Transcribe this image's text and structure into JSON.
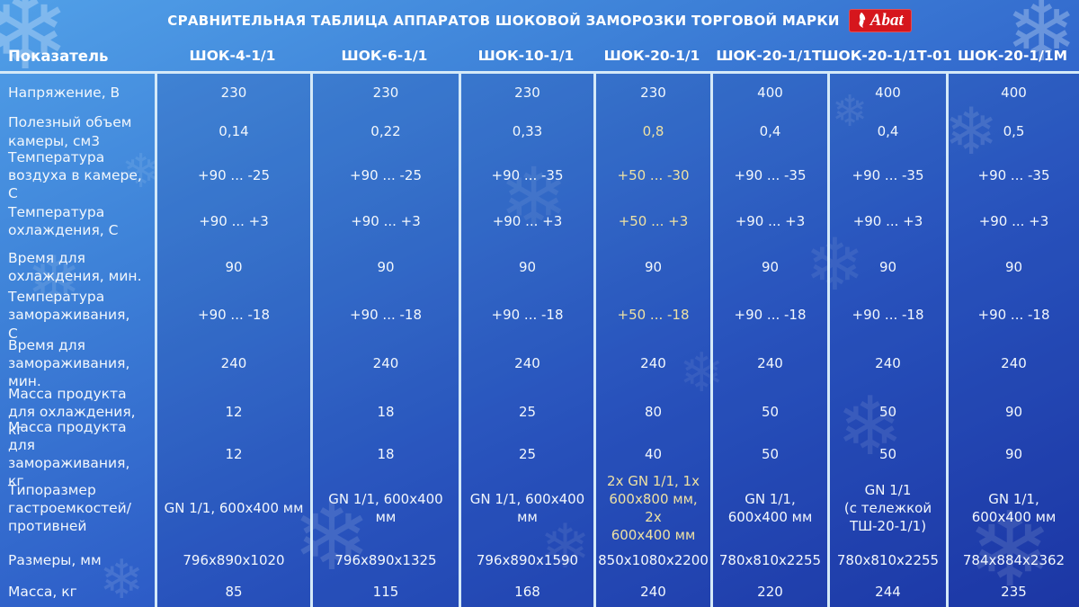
{
  "chart_data": {
    "type": "table",
    "title": "СРАВНИТЕЛЬНАЯ ТАБЛИЦА АППАРАТОВ ШОКОВОЙ ЗАМОРОЗКИ ТОРГОВОЙ МАРКИ",
    "indicator_header": "Показатель",
    "columns": [
      "ШОК-4-1/1",
      "ШОК-6-1/1",
      "ШОК-10-1/1",
      "ШОК-20-1/1",
      "ШОК-20-1/1Т",
      "ШОК-20-1/1Т-01",
      "ШОК-20-1/1М"
    ],
    "rows": [
      {
        "label": "Напряжение, В",
        "values": [
          "230",
          "230",
          "230",
          "230",
          "400",
          "400",
          "400"
        ],
        "highlight_col": -1
      },
      {
        "label": "Полезный объем камеры, см3",
        "values": [
          "0,14",
          "0,22",
          "0,33",
          "0,8",
          "0,4",
          "0,4",
          "0,5"
        ],
        "highlight_col": 3
      },
      {
        "label": "Температура воздуха в камере, С",
        "values": [
          "+90 ... -25",
          "+90 ... -25",
          "+90 ... -35",
          "+50 ... -30",
          "+90 ... -35",
          "+90 ... -35",
          "+90 ... -35"
        ],
        "highlight_col": 3
      },
      {
        "label": "Температура охлаждения, С",
        "values": [
          "+90 ... +3",
          "+90 ... +3",
          "+90 ... +3",
          "+50 ... +3",
          "+90 ... +3",
          "+90 ... +3",
          "+90 ... +3"
        ],
        "highlight_col": 3
      },
      {
        "label": "Время для охлаждения, мин.",
        "values": [
          "90",
          "90",
          "90",
          "90",
          "90",
          "90",
          "90"
        ],
        "highlight_col": -1
      },
      {
        "label": "Температура замораживания, С",
        "values": [
          "+90 ... -18",
          "+90 ... -18",
          "+90 ... -18",
          "+50 ... -18",
          "+90 ... -18",
          "+90 ... -18",
          "+90 ... -18"
        ],
        "highlight_col": 3
      },
      {
        "label": "Время для замораживания, мин.",
        "values": [
          "240",
          "240",
          "240",
          "240",
          "240",
          "240",
          "240"
        ],
        "highlight_col": -1
      },
      {
        "label": "Масса продукта для охлаждения, кг",
        "values": [
          "12",
          "18",
          "25",
          "80",
          "50",
          "50",
          "90"
        ],
        "highlight_col": -1
      },
      {
        "label": "Масса продукта для замораживания, кг",
        "values": [
          "12",
          "18",
          "25",
          "40",
          "50",
          "50",
          "90"
        ],
        "highlight_col": -1
      },
      {
        "label": "Типоразмер гастроемкостей/ противней",
        "values": [
          "GN 1/1, 600x400 мм",
          "GN 1/1, 600x400 мм",
          "GN 1/1, 600x400 мм",
          "2х GN 1/1, 1х\n600х800 мм, 2х\n600х400 мм",
          "GN 1/1,\n600х400 мм",
          "GN 1/1\n(с тележкой\nТШ-20-1/1)",
          "GN 1/1,\n600х400 мм"
        ],
        "highlight_col": 3
      },
      {
        "label": "Размеры, мм",
        "values": [
          "796х890х1020",
          "796х890х1325",
          "796х890х1590",
          "850х1080х2200",
          "780х810х2255",
          "780х810х2255",
          "784х884х2362"
        ],
        "highlight_col": -1
      },
      {
        "label": "Масса, кг",
        "values": [
          "85",
          "115",
          "168",
          "240",
          "220",
          "244",
          "235"
        ],
        "highlight_col": -1
      }
    ],
    "layout": {
      "grid": true,
      "separator_color": "#d4e9f8",
      "highlight_text_color": "#eee1a3"
    }
  },
  "logo": {
    "text": "Abat",
    "bg_color": "#d6161d"
  },
  "decor": {
    "snowflake_glyph": "❄"
  }
}
